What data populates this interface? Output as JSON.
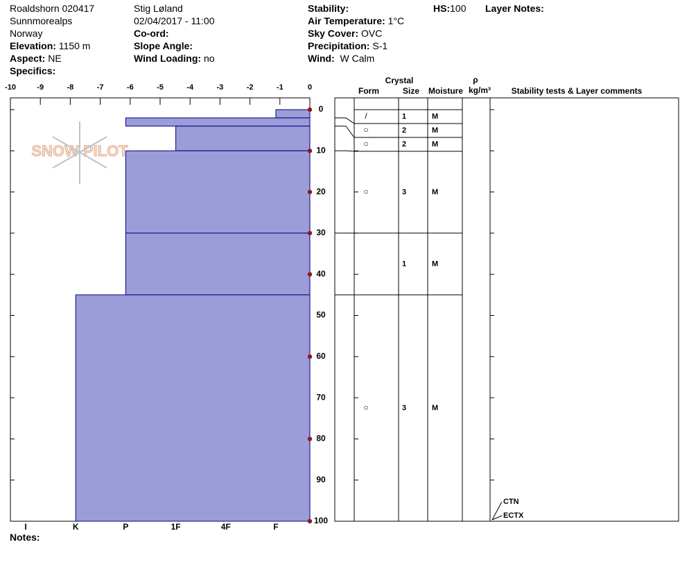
{
  "header": {
    "site": "Roaldshorn 020417",
    "range": "Sunnmorealps",
    "country": "Norway",
    "elevation": {
      "label": "Elevation:",
      "value": "1150 m"
    },
    "aspect": {
      "label": "Aspect:",
      "value": "NE"
    },
    "specifics": {
      "label": "Specifics:"
    },
    "observer": "Stig Løland",
    "datetime": "02/04/2017 - 11:00",
    "coord": {
      "label": "Co-ord:"
    },
    "slope_angle": {
      "label": "Slope Angle:"
    },
    "wind_loading": {
      "label": "Wind Loading:",
      "value": "no"
    },
    "stability": {
      "label": "Stability:"
    },
    "air_temperature": {
      "label": "Air Temperature:",
      "value": "1°C"
    },
    "sky_cover": {
      "label": "Sky Cover:",
      "value": "OVC"
    },
    "precipitation": {
      "label": "Precipitation:",
      "value": "S-1"
    },
    "wind": {
      "label": "Wind:",
      "value": "W Calm"
    },
    "hs": {
      "label": "HS:",
      "value": 100
    },
    "layer_notes": {
      "label": "Layer Notes:"
    }
  },
  "notes": {
    "label": "Notes:"
  },
  "watermark": "SNOW PILOT",
  "chart_data": {
    "type": "snow-profile",
    "temperature": {
      "xlim": [
        -10,
        0
      ],
      "xticks": [
        -10,
        -9,
        -8,
        -7,
        -6,
        -5,
        -4,
        -3,
        -2,
        -1,
        0
      ],
      "depths": [
        0,
        10,
        20,
        30,
        40,
        60,
        80,
        100
      ],
      "values": [
        0,
        0,
        0,
        0,
        0,
        0,
        0,
        0
      ]
    },
    "ylim": [
      0,
      100
    ],
    "yticks": [
      0,
      10,
      20,
      30,
      40,
      50,
      60,
      70,
      80,
      90,
      100
    ],
    "hardness_scale": [
      "I",
      "K",
      "P",
      "1F",
      "4F",
      "F"
    ],
    "layers": {
      "top": [
        0,
        2,
        4,
        10,
        30,
        45
      ],
      "bottom": [
        2,
        4,
        10,
        30,
        45,
        100
      ],
      "hardness": [
        "F",
        "P",
        "1F",
        "P",
        "P",
        "K"
      ],
      "form": [
        "/",
        "○",
        "○",
        "○",
        null,
        "○"
      ],
      "size": [
        1,
        2,
        2,
        3,
        1,
        3
      ],
      "moisture": [
        "M",
        "M",
        "M",
        "M",
        "M",
        "M"
      ]
    },
    "columns": {
      "crystal": "Crystal",
      "form": "Form",
      "size": "Size",
      "moisture": "Moisture",
      "density_symbol": "ρ",
      "density_unit": "kg/m³",
      "comments": "Stability tests & Layer comments"
    },
    "stability_tests": {
      "names": [
        "CTN",
        "ECTX"
      ],
      "depths": [
        100,
        100
      ]
    },
    "colors": {
      "fill": "#9c9cd8",
      "stroke": "#000080",
      "temperature": "#8b1a1a"
    }
  }
}
